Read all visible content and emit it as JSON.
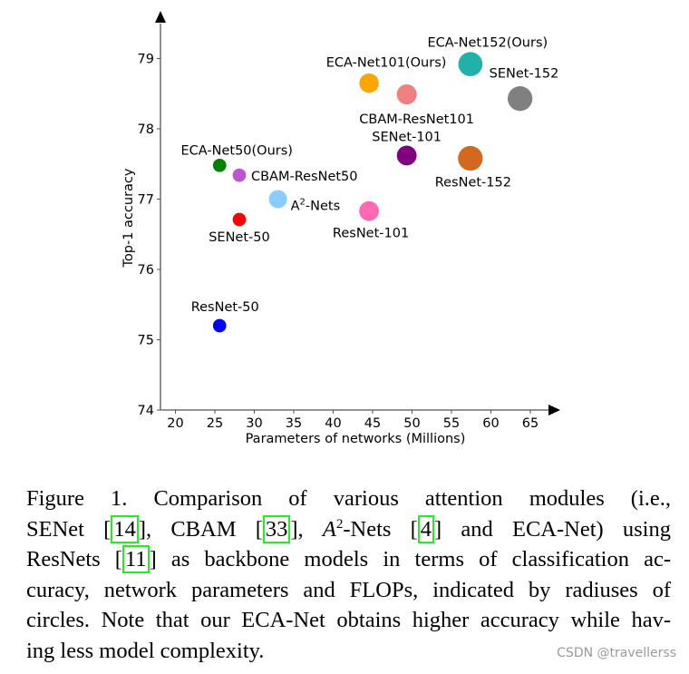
{
  "chart_data": {
    "type": "scatter",
    "title": "",
    "xlabel": "Parameters of networks (Millions)",
    "ylabel": "Top-1 accuracy",
    "xlim": [
      18.1,
      68.8
    ],
    "ylim": [
      74,
      79.6
    ],
    "xticks": [
      20,
      25,
      30,
      35,
      40,
      45,
      50,
      55,
      60,
      65
    ],
    "yticks": [
      74,
      75,
      76,
      77,
      78,
      79
    ],
    "grid": false,
    "size_encoding": "FLOPs (circle radius)",
    "points": [
      {
        "label": "ResNet-50",
        "x": 25.6,
        "y": 75.2,
        "flops": 3.86,
        "color": "#0000ff"
      },
      {
        "label": "SENet-50",
        "x": 28.1,
        "y": 76.71,
        "flops": 3.87,
        "color": "#ff0000"
      },
      {
        "label": "CBAM-ResNet50",
        "x": 28.1,
        "y": 77.34,
        "flops": 3.9,
        "color": "#ba55d3"
      },
      {
        "label": "ECA-Net50(Ours)",
        "x": 25.6,
        "y": 77.48,
        "flops": 3.86,
        "color": "#008000"
      },
      {
        "label": "A²-Nets",
        "label_base": "A",
        "label_sup": "2",
        "label_rest": "-Nets",
        "x": 33.0,
        "y": 77.0,
        "flops": 6.5,
        "color": "#87cefa"
      },
      {
        "label": "ResNet-101",
        "x": 44.55,
        "y": 76.83,
        "flops": 7.58,
        "color": "#ff69b4"
      },
      {
        "label": "ECA-Net101(Ours)",
        "x": 44.55,
        "y": 78.65,
        "flops": 7.35,
        "color": "#ffa500"
      },
      {
        "label": "CBAM-ResNet101",
        "x": 49.33,
        "y": 78.49,
        "flops": 7.79,
        "color": "#f08080"
      },
      {
        "label": "SENet-101",
        "x": 49.33,
        "y": 77.62,
        "flops": 7.6,
        "color": "#800080"
      },
      {
        "label": "ResNet-152",
        "x": 57.4,
        "y": 77.58,
        "flops": 11.3,
        "color": "#d2691e"
      },
      {
        "label": "ECA-Net152(Ours)",
        "x": 57.4,
        "y": 78.92,
        "flops": 10.83,
        "color": "#20b2aa"
      },
      {
        "label": "SENet-152",
        "x": 63.7,
        "y": 78.43,
        "flops": 11.32,
        "color": "#808080"
      }
    ]
  },
  "caption": {
    "lines": [
      [
        {
          "t": "Figure 1. Comparison of various attention modules (i.e.,"
        }
      ],
      [
        {
          "t": "SENet ["
        },
        {
          "t": "14",
          "cite": true
        },
        {
          "t": "], CBAM ["
        },
        {
          "t": "33",
          "cite": true
        },
        {
          "t": "], "
        },
        {
          "t": "A",
          "ital": true
        },
        {
          "t": "2",
          "sup": true
        },
        {
          "t": "-Nets ["
        },
        {
          "t": "4",
          "cite": true
        },
        {
          "t": "] and ECA-Net) using"
        }
      ],
      [
        {
          "t": "ResNets ["
        },
        {
          "t": "11",
          "cite": true
        },
        {
          "t": "] as backbone models in terms of classification ac-"
        }
      ],
      [
        {
          "t": "curacy, network parameters and FLOPs, indicated by radiuses of"
        }
      ],
      [
        {
          "t": "circles. Note that our ECA-Net obtains higher accuracy while hav-"
        }
      ],
      [
        {
          "t": "ing less model complexity."
        }
      ]
    ],
    "cite_color": "#22ee22"
  },
  "watermark": "CSDN @travellerss"
}
